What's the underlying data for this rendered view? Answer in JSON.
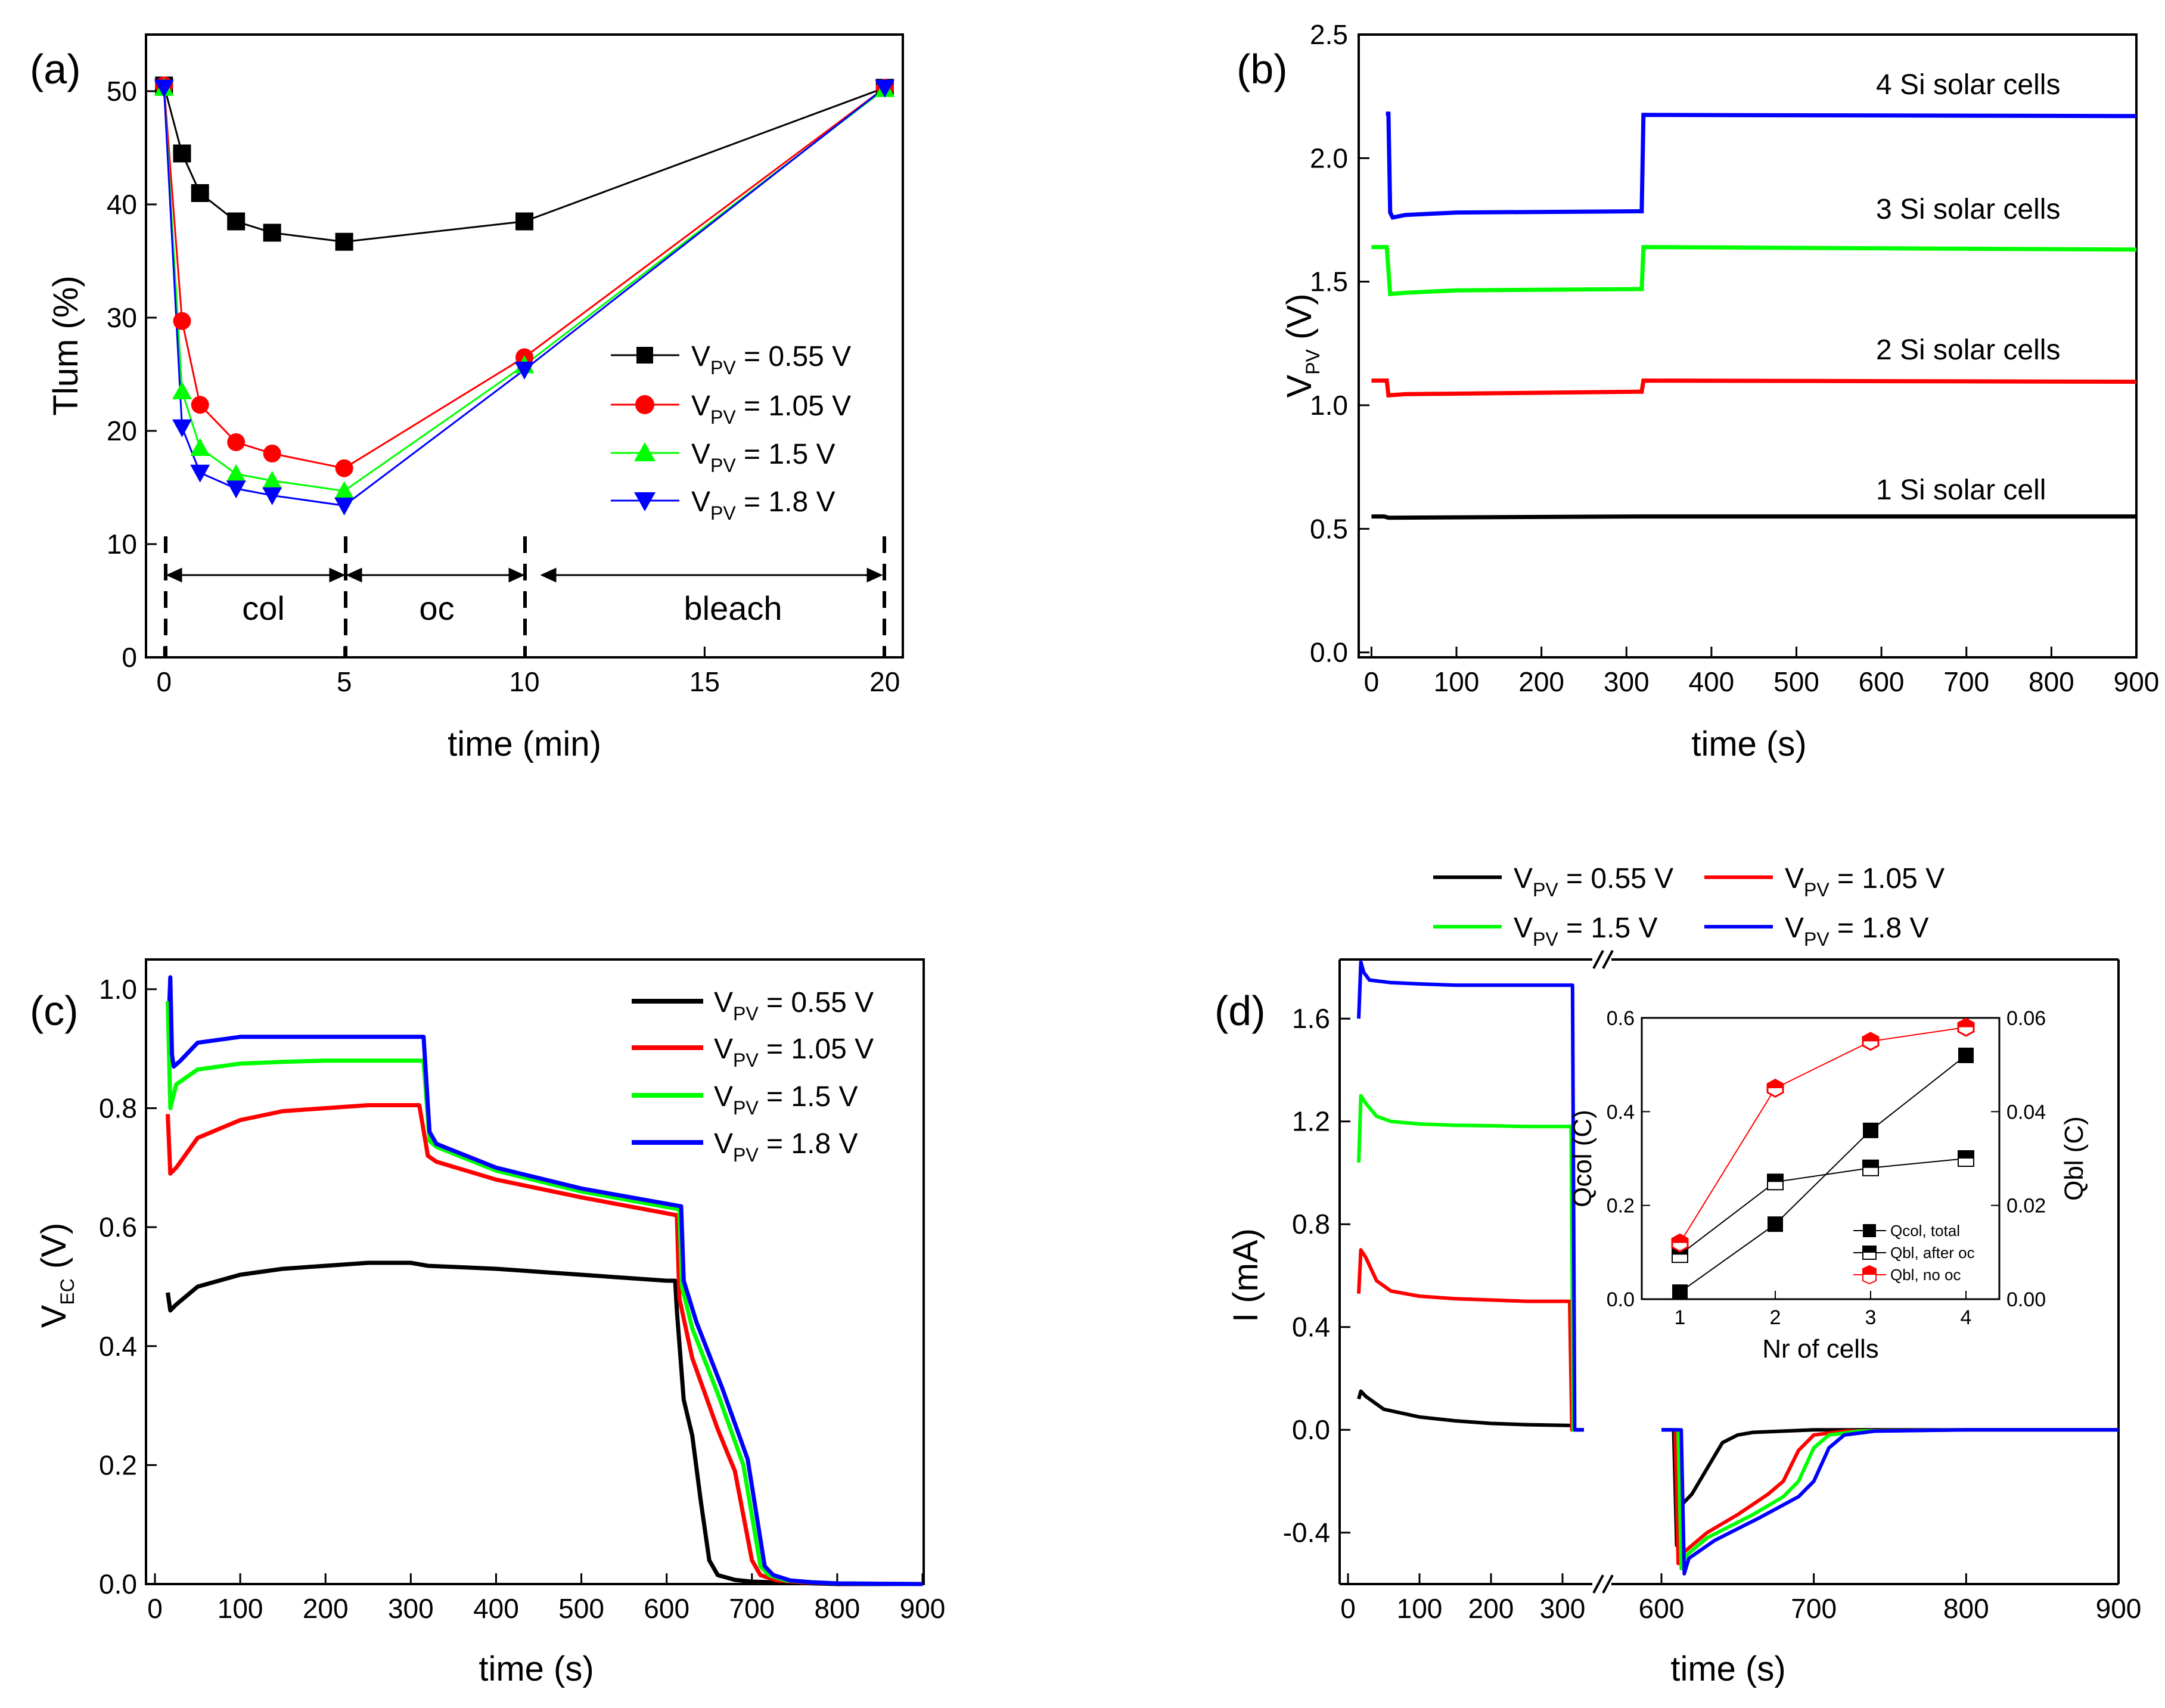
{
  "chart_data": [
    {
      "id": "a",
      "type": "line",
      "panel_label": "(a)",
      "xlabel": "time (min)",
      "ylabel": "Tlum (%)",
      "xlim": [
        -0.5,
        20.5
      ],
      "ylim": [
        0,
        55
      ],
      "xticks": [
        "0",
        "5",
        "10",
        "15",
        "20"
      ],
      "yticks": [
        "0",
        "10",
        "20",
        "30",
        "40",
        "50"
      ],
      "annotations": {
        "col": "col",
        "oc": "oc",
        "bleach": "bleach"
      },
      "series": [
        {
          "name": "V_PV = 0.55 V",
          "legend_prefix": "V",
          "legend_sub": "PV",
          "legend_suffix": " = 0.55 V",
          "color": "#000000",
          "marker": "square",
          "x": [
            0,
            0.5,
            1,
            2,
            3,
            5,
            10,
            20
          ],
          "y": [
            50.5,
            44.5,
            41,
            38.5,
            37.5,
            36.7,
            38.5,
            50.3
          ]
        },
        {
          "name": "V_PV = 1.05 V",
          "legend_prefix": "V",
          "legend_sub": "PV",
          "legend_suffix": " = 1.05 V",
          "color": "#ff0000",
          "marker": "circle",
          "x": [
            0,
            0.5,
            1,
            2,
            3,
            5,
            10,
            20
          ],
          "y": [
            50.5,
            29.7,
            22.3,
            19,
            18,
            16.7,
            26.5,
            50.3
          ]
        },
        {
          "name": "V_PV = 1.5 V",
          "legend_prefix": "V",
          "legend_sub": "PV",
          "legend_suffix": " = 1.5 V",
          "color": "#00ff00",
          "marker": "triangle-up",
          "x": [
            0,
            0.5,
            1,
            2,
            3,
            5,
            10,
            20
          ],
          "y": [
            50.3,
            23.5,
            18.5,
            16.2,
            15.6,
            14.7,
            25.8,
            50.2
          ]
        },
        {
          "name": "V_PV = 1.8 V",
          "legend_prefix": "V",
          "legend_sub": "PV",
          "legend_suffix": " = 1.8 V",
          "color": "#0000ff",
          "marker": "triangle-down",
          "x": [
            0,
            0.5,
            1,
            2,
            3,
            5,
            10,
            20
          ],
          "y": [
            50.3,
            20.3,
            16.3,
            14.9,
            14.3,
            13.4,
            25.4,
            50.3
          ]
        }
      ]
    },
    {
      "id": "b",
      "type": "line",
      "panel_label": "(b)",
      "xlabel": "time (s)",
      "ylabel": "V",
      "ylabel_sub": "PV",
      "ylabel_suffix": " (V)",
      "xlim": [
        -15,
        900
      ],
      "ylim": [
        -0.02,
        2.5
      ],
      "xticks": [
        "0",
        "100",
        "200",
        "300",
        "400",
        "500",
        "600",
        "700",
        "800",
        "900"
      ],
      "yticks": [
        "0.0",
        "0.5",
        "1.0",
        "1.5",
        "2.0",
        "2.5"
      ],
      "series": [
        {
          "name": "1 Si solar cell",
          "color": "#000000",
          "x": [
            0,
            15,
            20,
            315,
            320,
            900
          ],
          "y": [
            0.55,
            0.55,
            0.545,
            0.55,
            0.55,
            0.55
          ]
        },
        {
          "name": "2 Si solar cells",
          "color": "#ff0000",
          "x": [
            0,
            18,
            20,
            40,
            315,
            318,
            320,
            900
          ],
          "y": [
            1.1,
            1.1,
            1.04,
            1.045,
            1.055,
            1.055,
            1.1,
            1.095
          ]
        },
        {
          "name": "3 Si solar cells",
          "color": "#00ff00",
          "x": [
            0,
            18,
            22,
            40,
            100,
            315,
            318,
            320,
            900
          ],
          "y": [
            1.64,
            1.64,
            1.45,
            1.455,
            1.465,
            1.47,
            1.47,
            1.64,
            1.63
          ]
        },
        {
          "name": "4 Si solar cells",
          "color": "#0000ff",
          "x": [
            17,
            20,
            22,
            25,
            40,
            100,
            315,
            318,
            320,
            900
          ],
          "y": [
            2.18,
            2.18,
            1.78,
            1.76,
            1.77,
            1.78,
            1.785,
            1.785,
            2.175,
            2.17
          ]
        }
      ]
    },
    {
      "id": "c",
      "type": "line",
      "panel_label": "(c)",
      "xlabel": "time (s)",
      "ylabel": "V",
      "ylabel_sub": "EC",
      "ylabel_suffix": " (V)",
      "xlim": [
        0,
        900
      ],
      "ylim": [
        0,
        1.05
      ],
      "xticks": [
        "0",
        "100",
        "200",
        "300",
        "400",
        "500",
        "600",
        "700",
        "800",
        "900"
      ],
      "yticks": [
        "0.0",
        "0.2",
        "0.4",
        "0.6",
        "0.8",
        "1.0"
      ],
      "series": [
        {
          "name": "V_PV = 0.55 V",
          "legend_prefix": "V",
          "legend_sub": "PV",
          "legend_suffix": " = 0.55 V",
          "color": "#000000",
          "x": [
            15,
            18,
            25,
            50,
            100,
            150,
            200,
            250,
            300,
            320,
            400,
            500,
            600,
            610,
            612,
            620,
            630,
            640,
            650,
            660,
            680,
            700,
            750,
            800,
            900
          ],
          "y": [
            0.49,
            0.46,
            0.47,
            0.5,
            0.52,
            0.53,
            0.535,
            0.54,
            0.54,
            0.535,
            0.53,
            0.52,
            0.51,
            0.51,
            0.46,
            0.31,
            0.25,
            0.14,
            0.04,
            0.015,
            0.007,
            0.004,
            0.002,
            0.0,
            0.0
          ]
        },
        {
          "name": "V_PV = 1.05 V",
          "legend_prefix": "V",
          "legend_sub": "PV",
          "legend_suffix": " = 1.05 V",
          "color": "#ff0000",
          "x": [
            15,
            18,
            25,
            50,
            100,
            150,
            200,
            250,
            310,
            320,
            330,
            400,
            500,
            612,
            615,
            630,
            660,
            680,
            700,
            710,
            730,
            760,
            800,
            900
          ],
          "y": [
            0.79,
            0.69,
            0.7,
            0.75,
            0.78,
            0.795,
            0.8,
            0.805,
            0.805,
            0.72,
            0.71,
            0.68,
            0.65,
            0.62,
            0.48,
            0.38,
            0.26,
            0.19,
            0.04,
            0.015,
            0.006,
            0.003,
            0.001,
            0.0
          ]
        },
        {
          "name": "V_PV = 1.5 V",
          "legend_prefix": "V",
          "legend_sub": "PV",
          "legend_suffix": " = 1.5 V",
          "color": "#00ff00",
          "x": [
            15,
            18,
            25,
            50,
            100,
            150,
            200,
            250,
            315,
            322,
            330,
            400,
            500,
            615,
            618,
            630,
            660,
            690,
            710,
            720,
            740,
            770,
            800,
            900
          ],
          "y": [
            0.98,
            0.8,
            0.84,
            0.865,
            0.875,
            0.878,
            0.88,
            0.88,
            0.88,
            0.745,
            0.735,
            0.695,
            0.66,
            0.63,
            0.5,
            0.43,
            0.32,
            0.2,
            0.03,
            0.015,
            0.006,
            0.003,
            0.001,
            0.0
          ]
        },
        {
          "name": "V_PV = 1.8 V",
          "legend_prefix": "V",
          "legend_sub": "PV",
          "legend_suffix": " = 1.8 V",
          "color": "#0000ff",
          "x": [
            17,
            18,
            20,
            22,
            30,
            50,
            100,
            150,
            200,
            250,
            315,
            322,
            330,
            400,
            500,
            617,
            620,
            635,
            665,
            695,
            715,
            725,
            745,
            770,
            800,
            900
          ],
          "y": [
            0.98,
            1.02,
            0.89,
            0.87,
            0.88,
            0.91,
            0.92,
            0.92,
            0.92,
            0.92,
            0.92,
            0.76,
            0.74,
            0.7,
            0.665,
            0.635,
            0.51,
            0.44,
            0.33,
            0.21,
            0.03,
            0.015,
            0.006,
            0.003,
            0.001,
            0.0
          ]
        }
      ]
    },
    {
      "id": "d",
      "type": "line",
      "panel_label": "(d)",
      "xlabel": "time (s)",
      "ylabel": "I (mA)",
      "broken_x_axis": [
        [
          10,
          330
        ],
        [
          580,
          900
        ]
      ],
      "ylim": [
        -0.6,
        1.83
      ],
      "xticks": [
        "0",
        "100",
        "200",
        "300",
        "600",
        "700",
        "800",
        "900"
      ],
      "yticks": [
        "-0.4",
        "0.0",
        "0.4",
        "0.8",
        "1.2",
        "1.6"
      ],
      "series": [
        {
          "name": "V_PV = 0.55 V",
          "legend_prefix": "V",
          "legend_sub": "PV",
          "legend_suffix": " = 0.55 V",
          "color": "#000000",
          "x": [
            15,
            18,
            25,
            50,
            100,
            150,
            200,
            250,
            310,
            315,
            318,
            330,
            600,
            608,
            610,
            612,
            620,
            630,
            640,
            650,
            660,
            700,
            800,
            900
          ],
          "y": [
            0.12,
            0.15,
            0.13,
            0.08,
            0.05,
            0.035,
            0.025,
            0.02,
            0.017,
            0.017,
            0.0,
            0.0,
            0.0,
            0.0,
            -0.45,
            -0.3,
            -0.25,
            -0.15,
            -0.05,
            -0.02,
            -0.01,
            0.0,
            0.0,
            0.0
          ]
        },
        {
          "name": "V_PV = 1.05 V",
          "legend_prefix": "V",
          "legend_sub": "PV",
          "legend_suffix": " = 1.05 V",
          "color": "#ff0000",
          "x": [
            15,
            18,
            25,
            40,
            60,
            100,
            150,
            200,
            250,
            310,
            313,
            315,
            330,
            600,
            609,
            611,
            614,
            630,
            650,
            670,
            680,
            690,
            700,
            720,
            800,
            900
          ],
          "y": [
            0.53,
            0.7,
            0.67,
            0.58,
            0.54,
            0.52,
            0.51,
            0.505,
            0.5,
            0.5,
            0.0,
            0.0,
            0.0,
            0.0,
            0.0,
            -0.52,
            -0.48,
            -0.4,
            -0.33,
            -0.25,
            -0.2,
            -0.08,
            -0.02,
            -0.005,
            0.0,
            0.0
          ]
        },
        {
          "name": "V_PV = 1.5 V",
          "legend_prefix": "V",
          "legend_sub": "PV",
          "legend_suffix": " = 1.5 V",
          "color": "#00ff00",
          "x": [
            15,
            18,
            25,
            40,
            60,
            100,
            150,
            200,
            250,
            312,
            315,
            330,
            600,
            611,
            613,
            616,
            630,
            660,
            680,
            690,
            700,
            710,
            730,
            800,
            900
          ],
          "y": [
            1.04,
            1.3,
            1.27,
            1.22,
            1.2,
            1.19,
            1.185,
            1.183,
            1.18,
            1.18,
            0.0,
            0.0,
            0.0,
            0.0,
            -0.54,
            -0.49,
            -0.42,
            -0.33,
            -0.26,
            -0.2,
            -0.07,
            -0.02,
            -0.005,
            0.0,
            0.0
          ]
        },
        {
          "name": "V_PV = 1.8 V",
          "legend_prefix": "V",
          "legend_sub": "PV",
          "legend_suffix": " = 1.8 V",
          "color": "#0000ff",
          "x": [
            15,
            18,
            22,
            30,
            60,
            100,
            150,
            200,
            250,
            314,
            317,
            330,
            600,
            613,
            615,
            618,
            635,
            665,
            690,
            700,
            710,
            720,
            740,
            800,
            900
          ],
          "y": [
            1.6,
            1.82,
            1.78,
            1.75,
            1.74,
            1.735,
            1.73,
            1.73,
            1.73,
            1.73,
            0.0,
            0.0,
            0.0,
            0.0,
            -0.56,
            -0.5,
            -0.43,
            -0.34,
            -0.26,
            -0.2,
            -0.07,
            -0.02,
            -0.005,
            0.0,
            0.0
          ]
        }
      ],
      "inset": {
        "type": "scatter",
        "xlabel": "Nr of cells",
        "ylabel_left": "Qcol (C)",
        "ylabel_right": "Qbl (C)",
        "xlim": [
          0.6,
          4.35
        ],
        "ylim_left": [
          0,
          0.6
        ],
        "ylim_right": [
          0,
          0.06
        ],
        "xticks": [
          "1",
          "2",
          "3",
          "4"
        ],
        "yticks_left": [
          "0.0",
          "0.2",
          "0.4",
          "0.6"
        ],
        "yticks_right": [
          "0.00",
          "0.02",
          "0.04",
          "0.06"
        ],
        "series": [
          {
            "name": "Qcol, total",
            "axis": "left",
            "marker": "square-filled",
            "color": "#000000",
            "x": [
              1,
              2,
              3,
              4
            ],
            "y": [
              0.015,
              0.16,
              0.36,
              0.52
            ]
          },
          {
            "name": "Qbl, after oc",
            "axis": "right",
            "marker": "square-half",
            "color": "#000000",
            "x": [
              1,
              2,
              3,
              4
            ],
            "y": [
              0.0095,
              0.025,
              0.028,
              0.03
            ]
          },
          {
            "name": "Qbl, no oc",
            "axis": "right",
            "marker": "hexagon-half",
            "color": "#ff0000",
            "x": [
              1,
              2,
              3,
              4
            ],
            "y": [
              0.012,
              0.045,
              0.055,
              0.058
            ]
          }
        ]
      }
    }
  ]
}
